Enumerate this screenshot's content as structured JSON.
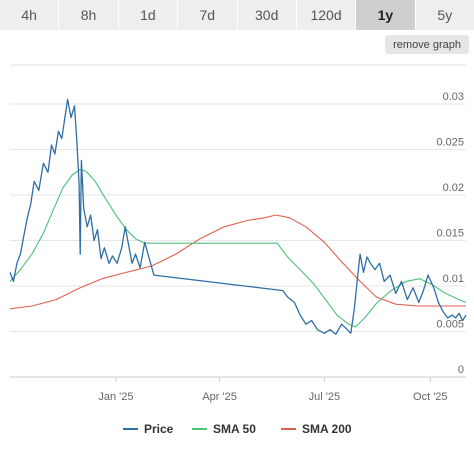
{
  "tabs": [
    {
      "label": "4h",
      "active": false
    },
    {
      "label": "8h",
      "active": false
    },
    {
      "label": "1d",
      "active": false
    },
    {
      "label": "7d",
      "active": false
    },
    {
      "label": "30d",
      "active": false
    },
    {
      "label": "120d",
      "active": false
    },
    {
      "label": "1y",
      "active": true
    },
    {
      "label": "5y",
      "active": false
    }
  ],
  "remove_graph_label": "remove graph",
  "chart_data": {
    "type": "line",
    "title": "",
    "xlabel": "",
    "ylabel": "",
    "x_ticks": [
      "Jan '25",
      "Apr '25",
      "Jul '25",
      "Oct '25"
    ],
    "y_ticks": [
      "0",
      "0.005",
      "0.01",
      "0.015",
      "0.02",
      "0.025",
      "0.03"
    ],
    "ylim": [
      0,
      0.03
    ],
    "grid": true,
    "legend_position": "bottom",
    "colors": {
      "Price": "#2f6ea5",
      "SMA 50": "#4cc17a",
      "SMA 200": "#e06050"
    },
    "series": [
      {
        "name": "Price",
        "points": [
          [
            "2024-10-01",
            0.0115
          ],
          [
            "2024-10-04",
            0.0105
          ],
          [
            "2024-10-07",
            0.0125
          ],
          [
            "2024-10-10",
            0.0135
          ],
          [
            "2024-10-13",
            0.0155
          ],
          [
            "2024-10-16",
            0.0175
          ],
          [
            "2024-10-19",
            0.019
          ],
          [
            "2024-10-22",
            0.0215
          ],
          [
            "2024-10-26",
            0.0205
          ],
          [
            "2024-10-30",
            0.0235
          ],
          [
            "2024-11-03",
            0.0225
          ],
          [
            "2024-11-06",
            0.0255
          ],
          [
            "2024-11-09",
            0.0245
          ],
          [
            "2024-11-12",
            0.027
          ],
          [
            "2024-11-15",
            0.0262
          ],
          [
            "2024-11-18",
            0.0288
          ],
          [
            "2024-11-20",
            0.0305
          ],
          [
            "2024-11-23",
            0.0285
          ],
          [
            "2024-11-26",
            0.0298
          ],
          [
            "2024-11-28",
            0.026
          ],
          [
            "2024-11-30",
            0.0212
          ],
          [
            "2024-12-01",
            0.0135
          ],
          [
            "2024-12-02",
            0.0238
          ],
          [
            "2024-12-04",
            0.0185
          ],
          [
            "2024-12-07",
            0.0165
          ],
          [
            "2024-12-10",
            0.0178
          ],
          [
            "2024-12-13",
            0.015
          ],
          [
            "2024-12-16",
            0.0162
          ],
          [
            "2024-12-19",
            0.013
          ],
          [
            "2024-12-22",
            0.0142
          ],
          [
            "2024-12-26",
            0.0125
          ],
          [
            "2024-12-29",
            0.0133
          ],
          [
            "2025-01-02",
            0.0125
          ],
          [
            "2025-01-06",
            0.0142
          ],
          [
            "2025-01-09",
            0.0165
          ],
          [
            "2025-01-12",
            0.0145
          ],
          [
            "2025-01-15",
            0.0125
          ],
          [
            "2025-01-18",
            0.0135
          ],
          [
            "2025-01-22",
            0.012
          ],
          [
            "2025-01-26",
            0.0148
          ],
          [
            "2025-01-30",
            0.013
          ],
          [
            "2025-02-03",
            0.0112
          ],
          [
            "2025-05-26",
            0.0095
          ],
          [
            "2025-05-30",
            0.0088
          ],
          [
            "2025-06-05",
            0.0082
          ],
          [
            "2025-06-10",
            0.0068
          ],
          [
            "2025-06-15",
            0.0058
          ],
          [
            "2025-06-20",
            0.0062
          ],
          [
            "2025-06-25",
            0.0052
          ],
          [
            "2025-07-01",
            0.0048
          ],
          [
            "2025-07-06",
            0.0052
          ],
          [
            "2025-07-11",
            0.0047
          ],
          [
            "2025-07-16",
            0.0058
          ],
          [
            "2025-07-21",
            0.0052
          ],
          [
            "2025-07-24",
            0.0048
          ],
          [
            "2025-07-27",
            0.0075
          ],
          [
            "2025-07-30",
            0.0112
          ],
          [
            "2025-08-01",
            0.0135
          ],
          [
            "2025-08-04",
            0.0115
          ],
          [
            "2025-08-07",
            0.0132
          ],
          [
            "2025-08-10",
            0.0125
          ],
          [
            "2025-08-14",
            0.0118
          ],
          [
            "2025-08-18",
            0.0125
          ],
          [
            "2025-08-22",
            0.0105
          ],
          [
            "2025-08-27",
            0.0112
          ],
          [
            "2025-09-01",
            0.0092
          ],
          [
            "2025-09-06",
            0.0105
          ],
          [
            "2025-09-11",
            0.0085
          ],
          [
            "2025-09-16",
            0.0098
          ],
          [
            "2025-09-21",
            0.0082
          ],
          [
            "2025-09-25",
            0.0095
          ],
          [
            "2025-09-29",
            0.0112
          ],
          [
            "2025-10-04",
            0.0098
          ],
          [
            "2025-10-08",
            0.0082
          ],
          [
            "2025-10-12",
            0.0072
          ],
          [
            "2025-10-16",
            0.0065
          ],
          [
            "2025-10-20",
            0.0068
          ],
          [
            "2025-10-23",
            0.0065
          ],
          [
            "2025-10-26",
            0.007
          ],
          [
            "2025-10-29",
            0.0062
          ],
          [
            "2025-11-01",
            0.0068
          ]
        ]
      },
      {
        "name": "SMA 50",
        "points": [
          [
            "2024-10-01",
            0.0105
          ],
          [
            "2024-10-10",
            0.0118
          ],
          [
            "2024-10-20",
            0.0135
          ],
          [
            "2024-10-30",
            0.0158
          ],
          [
            "2024-11-08",
            0.0185
          ],
          [
            "2024-11-16",
            0.0208
          ],
          [
            "2024-11-24",
            0.0222
          ],
          [
            "2024-12-01",
            0.0228
          ],
          [
            "2024-12-06",
            0.0226
          ],
          [
            "2024-12-14",
            0.0215
          ],
          [
            "2024-12-22",
            0.0198
          ],
          [
            "2025-01-01",
            0.0178
          ],
          [
            "2025-01-10",
            0.0162
          ],
          [
            "2025-01-18",
            0.0152
          ],
          [
            "2025-01-26",
            0.0147
          ],
          [
            "2025-02-20",
            0.0147
          ],
          [
            "2025-03-20",
            0.0147
          ],
          [
            "2025-04-20",
            0.0147
          ],
          [
            "2025-05-21",
            0.0147
          ],
          [
            "2025-05-30",
            0.0132
          ],
          [
            "2025-06-10",
            0.0118
          ],
          [
            "2025-06-22",
            0.0102
          ],
          [
            "2025-07-02",
            0.0085
          ],
          [
            "2025-07-12",
            0.0068
          ],
          [
            "2025-07-22",
            0.0058
          ],
          [
            "2025-07-28",
            0.0055
          ],
          [
            "2025-08-05",
            0.0065
          ],
          [
            "2025-08-16",
            0.0082
          ],
          [
            "2025-08-28",
            0.0095
          ],
          [
            "2025-09-10",
            0.0105
          ],
          [
            "2025-09-22",
            0.0108
          ],
          [
            "2025-10-02",
            0.0102
          ],
          [
            "2025-10-14",
            0.0092
          ],
          [
            "2025-10-26",
            0.0085
          ],
          [
            "2025-11-01",
            0.0082
          ]
        ]
      },
      {
        "name": "SMA 200",
        "points": [
          [
            "2024-10-01",
            0.0075
          ],
          [
            "2024-10-20",
            0.0078
          ],
          [
            "2024-11-10",
            0.0085
          ],
          [
            "2024-12-01",
            0.0098
          ],
          [
            "2024-12-20",
            0.0108
          ],
          [
            "2025-01-10",
            0.0115
          ],
          [
            "2025-02-01",
            0.0122
          ],
          [
            "2025-02-22",
            0.0135
          ],
          [
            "2025-03-15",
            0.0152
          ],
          [
            "2025-04-05",
            0.0165
          ],
          [
            "2025-04-25",
            0.0172
          ],
          [
            "2025-05-10",
            0.0175
          ],
          [
            "2025-05-20",
            0.0178
          ],
          [
            "2025-06-01",
            0.0175
          ],
          [
            "2025-06-15",
            0.0165
          ],
          [
            "2025-07-01",
            0.0148
          ],
          [
            "2025-07-15",
            0.0128
          ],
          [
            "2025-08-01",
            0.0105
          ],
          [
            "2025-08-15",
            0.0088
          ],
          [
            "2025-09-01",
            0.008
          ],
          [
            "2025-09-20",
            0.0078
          ],
          [
            "2025-10-10",
            0.0078
          ],
          [
            "2025-11-01",
            0.0078
          ]
        ]
      }
    ]
  }
}
